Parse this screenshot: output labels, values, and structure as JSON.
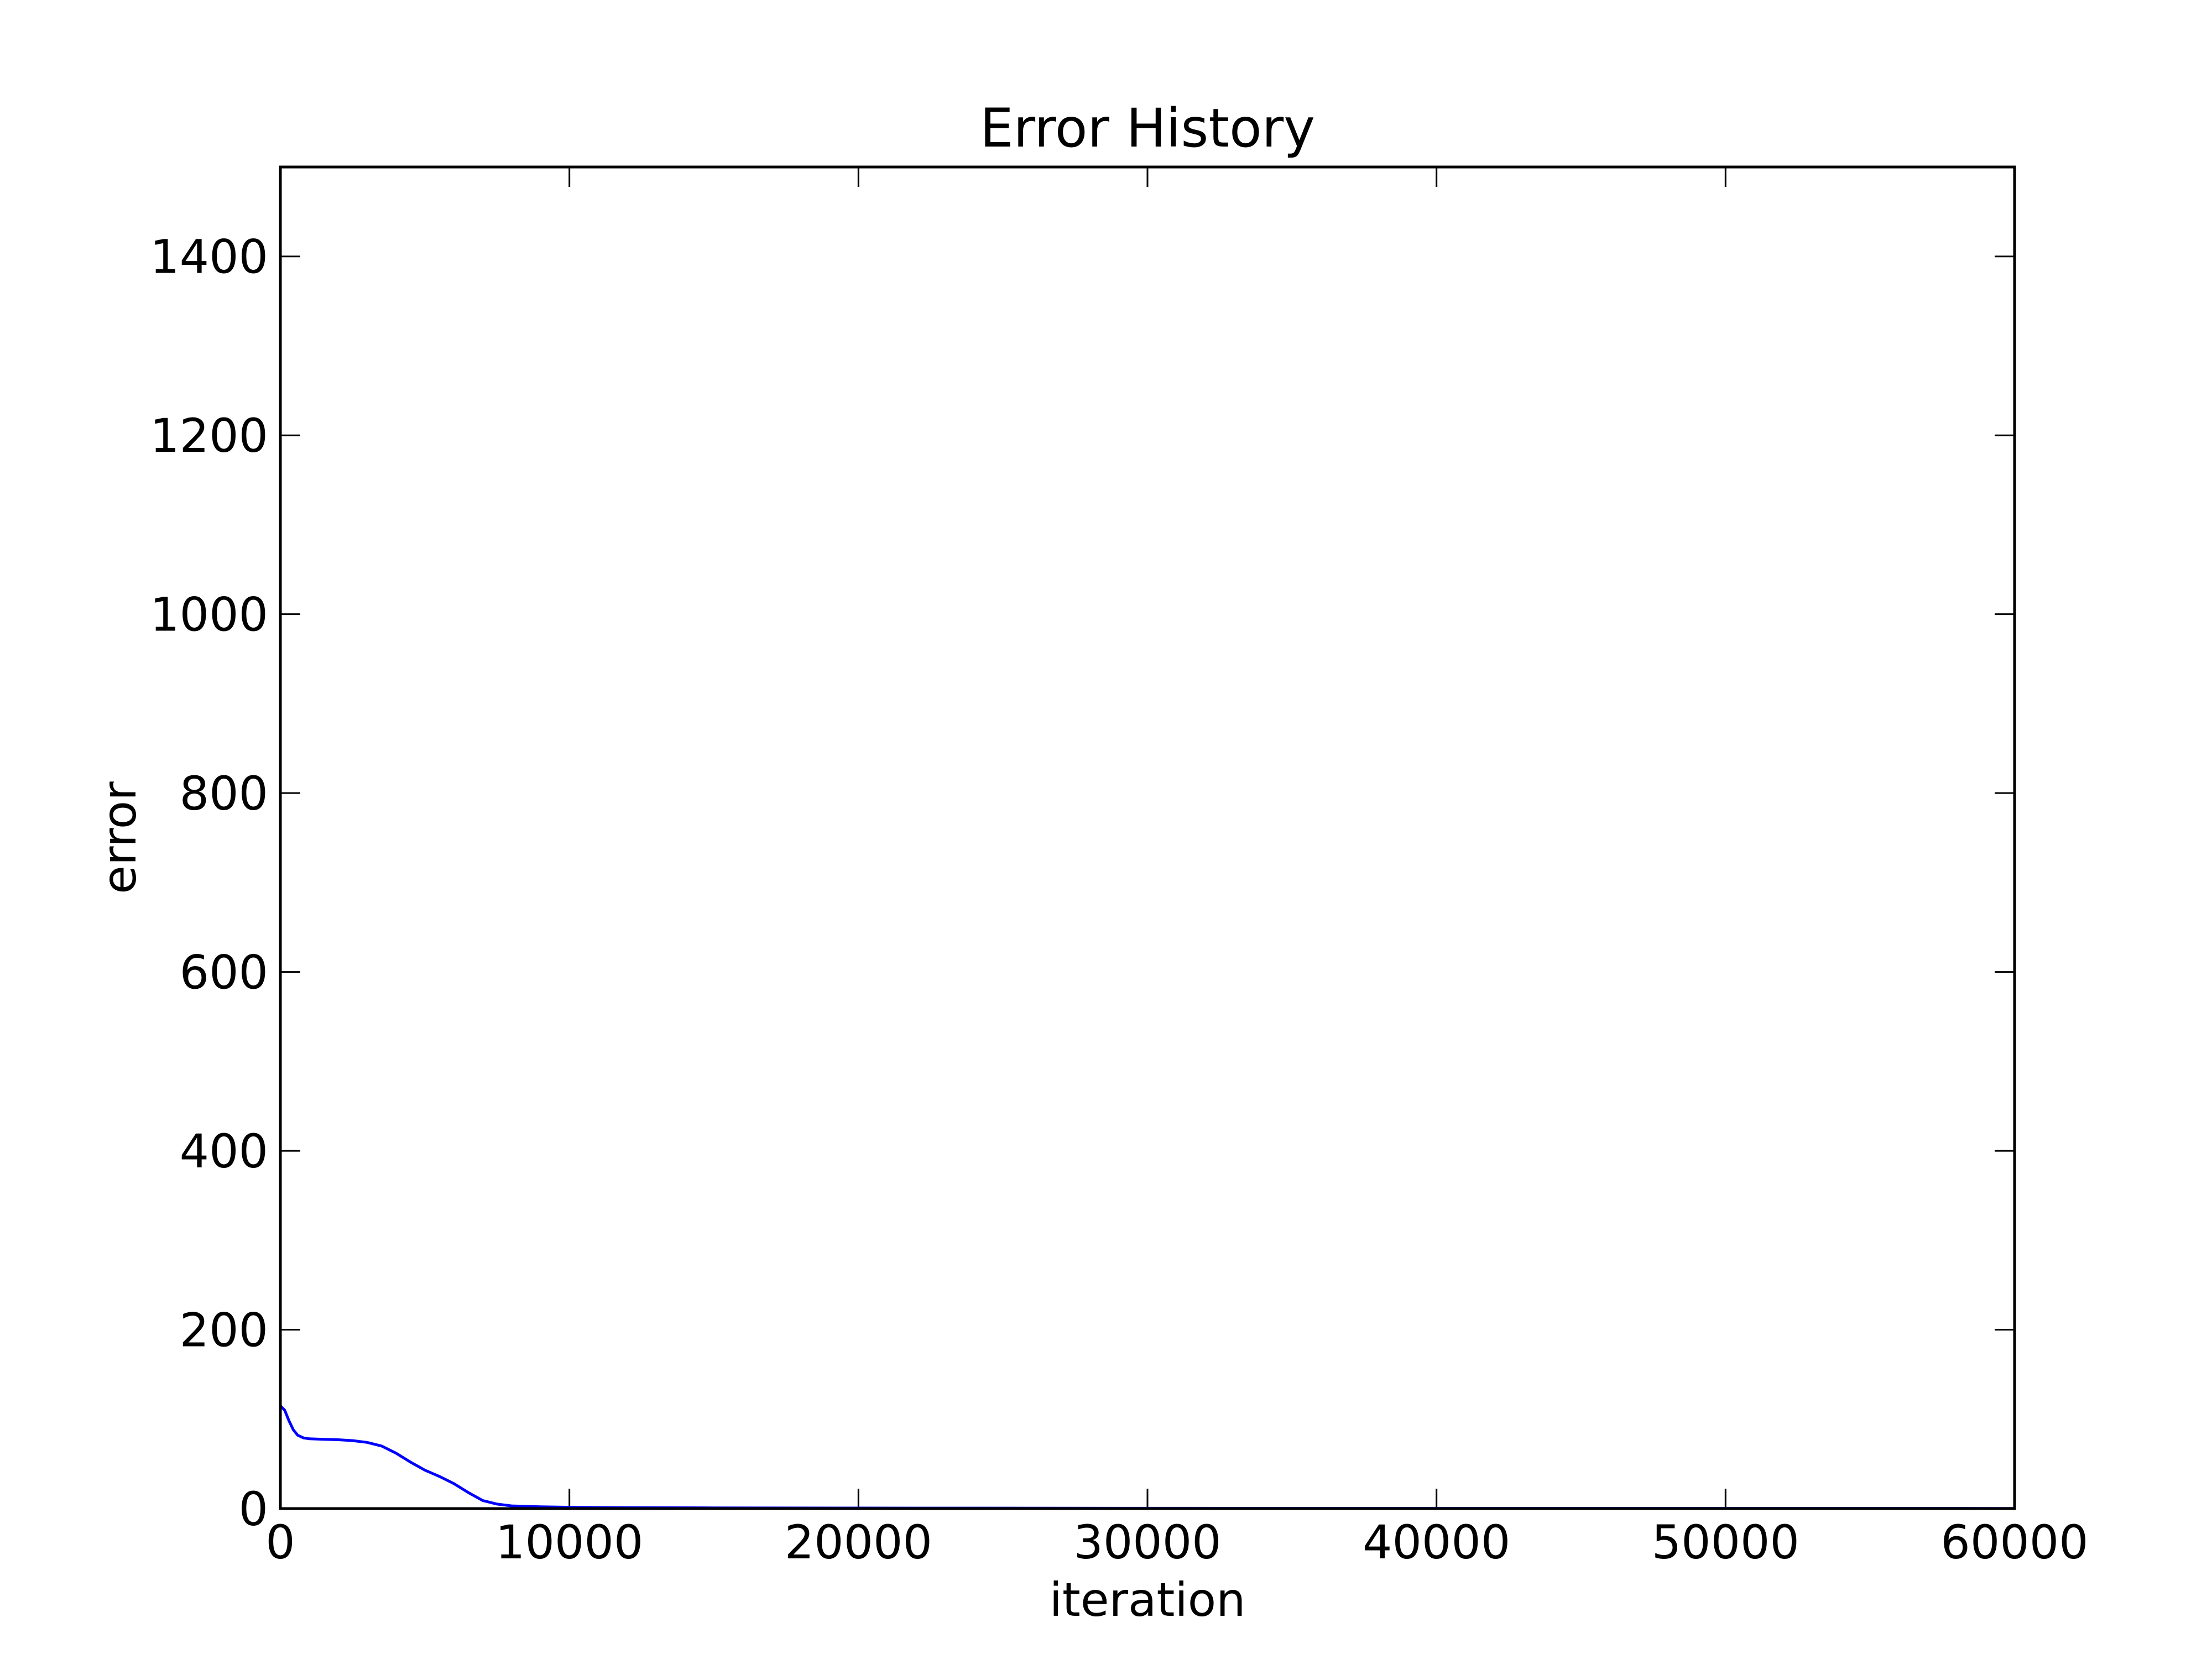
{
  "chart_data": {
    "type": "line",
    "title": "Error History",
    "xlabel": "iteration",
    "ylabel": "error",
    "xlim": [
      0,
      60000
    ],
    "ylim": [
      0,
      1500
    ],
    "grid": false,
    "x_ticks": [
      0,
      10000,
      20000,
      30000,
      40000,
      50000,
      60000
    ],
    "y_ticks": [
      0,
      200,
      400,
      600,
      800,
      1000,
      1200,
      1400
    ],
    "x_tick_labels": [
      "0",
      "10000",
      "20000",
      "30000",
      "40000",
      "50000",
      "60000"
    ],
    "y_tick_labels": [
      "0",
      "200",
      "400",
      "600",
      "800",
      "1000",
      "1200",
      "1400"
    ],
    "series": [
      {
        "color": "#0000ff",
        "x": [
          0,
          150,
          300,
          450,
          600,
          800,
          1000,
          1500,
          2000,
          2500,
          3000,
          3500,
          4000,
          4500,
          5000,
          5500,
          6000,
          6500,
          7000,
          7500,
          8000,
          9000,
          10000,
          12000,
          15000,
          20000,
          30000,
          40000,
          50000,
          60000
        ],
        "y": [
          115,
          110,
          98,
          88,
          82,
          79,
          78,
          77.5,
          77,
          76,
          74,
          70,
          62,
          52,
          43,
          36,
          28,
          18,
          9,
          5,
          3,
          2,
          1.5,
          1,
          0.8,
          0.6,
          0.4,
          0.3,
          0.25,
          0.2
        ]
      }
    ]
  }
}
